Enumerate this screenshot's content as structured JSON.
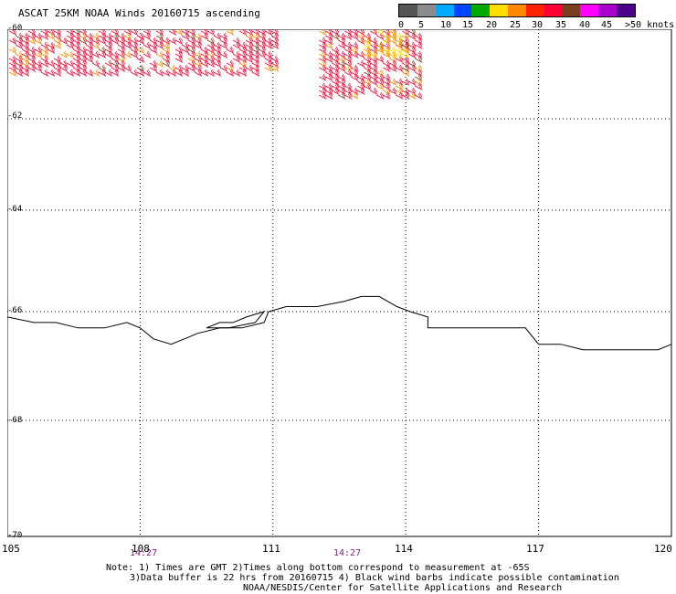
{
  "title": "ASCAT 25KM NOAA Winds 20160715 ascending",
  "legend": {
    "colors": [
      "#555555",
      "#8c8c8c",
      "#00aaff",
      "#0044ff",
      "#00aa00",
      "#ffdd00",
      "#ff8800",
      "#ff2200",
      "#ff0033",
      "#7a3e1e",
      "#ff00ff",
      "#aa00cc",
      "#4a0088"
    ],
    "labels": [
      "0",
      "5",
      "10",
      "15",
      "20",
      "25",
      "30",
      "35",
      "40",
      "45",
      ">50 knots"
    ]
  },
  "latitude_labels": [
    "-60",
    "-62",
    "-64",
    "-66",
    "-68",
    "-70"
  ],
  "longitude_labels": [
    "105",
    "108",
    "111",
    "114",
    "117",
    "120"
  ],
  "time_labels": [
    "14:27",
    "14:27"
  ],
  "notes": [
    "Note: 1) Times are GMT 2)Times along bottom correspond to measurement at -65S",
    "3)Data buffer is 22 hrs from 20160715 4) Black wind barbs indicate possible contamination",
    "NOAA/NESDIS/Center for Satellite Applications and Research"
  ],
  "map_data": {
    "projection": "lat-lon",
    "lon_range": [
      105,
      120
    ],
    "lat_range": [
      -60,
      -70
    ],
    "coastline": [
      [
        105.0,
        -66.1
      ],
      [
        105.6,
        -66.2
      ],
      [
        106.1,
        -66.2
      ],
      [
        106.6,
        -66.3
      ],
      [
        107.2,
        -66.3
      ],
      [
        107.7,
        -66.2
      ],
      [
        108.0,
        -66.3
      ],
      [
        108.3,
        -66.5
      ],
      [
        108.7,
        -66.6
      ],
      [
        109.0,
        -66.5
      ],
      [
        109.3,
        -66.4
      ],
      [
        109.8,
        -66.3
      ],
      [
        110.3,
        -66.3
      ],
      [
        110.8,
        -66.2
      ],
      [
        110.9,
        -66.0
      ],
      [
        111.3,
        -65.9
      ],
      [
        112.0,
        -65.9
      ],
      [
        112.6,
        -65.8
      ],
      [
        113.0,
        -65.7
      ],
      [
        113.4,
        -65.7
      ],
      [
        113.8,
        -65.9
      ],
      [
        114.1,
        -66.0
      ],
      [
        114.5,
        -66.1
      ],
      [
        114.5,
        -66.3
      ],
      [
        114.9,
        -66.3
      ],
      [
        115.5,
        -66.3
      ],
      [
        116.2,
        -66.3
      ],
      [
        116.7,
        -66.3
      ],
      [
        117.0,
        -66.6
      ],
      [
        117.5,
        -66.6
      ],
      [
        118.0,
        -66.7
      ],
      [
        118.5,
        -66.7
      ],
      [
        119.1,
        -66.7
      ],
      [
        119.7,
        -66.7
      ],
      [
        120.0,
        -66.6
      ]
    ],
    "island": [
      [
        109.5,
        -66.3
      ],
      [
        109.8,
        -66.2
      ],
      [
        110.1,
        -66.2
      ],
      [
        110.4,
        -66.1
      ],
      [
        110.8,
        -66.0
      ],
      [
        110.6,
        -66.2
      ],
      [
        110.0,
        -66.3
      ],
      [
        109.5,
        -66.3
      ]
    ],
    "wind_swaths": [
      {
        "lon_range": [
          105.0,
          111.0
        ],
        "lat_range": [
          -60.0,
          -61.0
        ],
        "dominant_color": "#ff0033"
      },
      {
        "lon_range": [
          112.0,
          114.3
        ],
        "lat_range": [
          -60.0,
          -61.5
        ],
        "dominant_color": "#ff0033"
      },
      {
        "lon_range": [
          113.0,
          114.0
        ],
        "lat_range": [
          -60.0,
          -60.6
        ],
        "dominant_color": "#ffdd00"
      }
    ]
  }
}
